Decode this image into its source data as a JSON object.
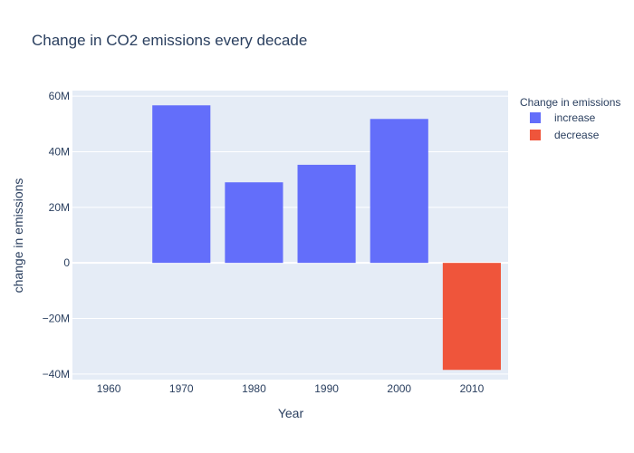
{
  "chart_data": {
    "type": "bar",
    "title": "Change in CO2 emissions every decade",
    "xlabel": "Year",
    "ylabel": "change in emissions",
    "categories": [
      "1960",
      "1970",
      "1980",
      "1990",
      "2000",
      "2010"
    ],
    "values": [
      0,
      56700000,
      29000000,
      35300000,
      51800000,
      -38500000
    ],
    "bar_groups": [
      "increase",
      "increase",
      "increase",
      "increase",
      "increase",
      "decrease"
    ],
    "series": [
      {
        "name": "increase",
        "color": "#636efa"
      },
      {
        "name": "decrease",
        "color": "#ef553b"
      }
    ],
    "legend_title": "Change in emissions",
    "legend_position": "top-right",
    "ylim": [
      -42000000,
      62000000
    ],
    "yticks": [
      -40000000,
      -20000000,
      0,
      20000000,
      40000000,
      60000000
    ],
    "ytick_labels": [
      "−40M",
      "−20M",
      "0",
      "20M",
      "40M",
      "60M"
    ],
    "grid": true,
    "colors": {
      "plot_background": "#e5ecf6",
      "gridline": "#ffffff",
      "text": "#2a3f5f"
    }
  }
}
